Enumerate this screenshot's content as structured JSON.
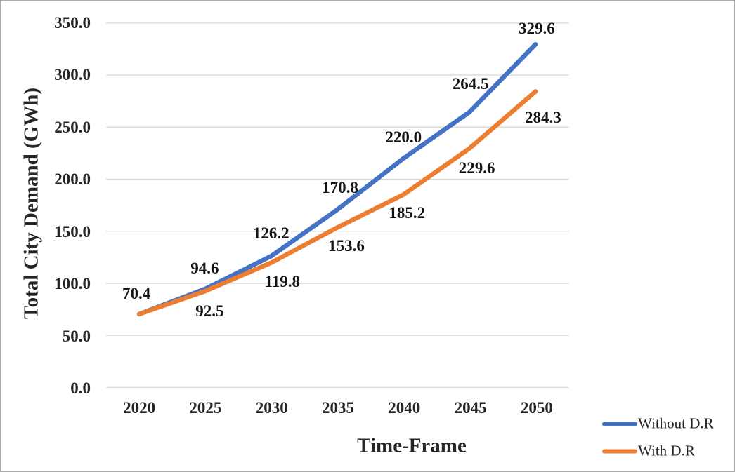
{
  "chart_data": {
    "type": "line",
    "title": "",
    "xlabel": "Time-Frame",
    "ylabel": "Total City Demand (GWh)",
    "categories": [
      "2020",
      "2025",
      "2030",
      "2035",
      "2040",
      "2045",
      "2050"
    ],
    "series": [
      {
        "name": "Without D.R",
        "color": "#4472C4",
        "values": [
          70.4,
          94.6,
          126.2,
          170.8,
          220.0,
          264.5,
          329.6
        ],
        "point_labels": [
          "70.4",
          "94.6",
          "126.2",
          "170.8",
          "220.0",
          "264.5",
          "329.6"
        ]
      },
      {
        "name": "With D.R",
        "color": "#ED7D31",
        "values": [
          70.4,
          92.5,
          119.8,
          153.6,
          185.2,
          229.6,
          284.3
        ],
        "point_labels": [
          null,
          "92.5",
          "119.8",
          "153.6",
          "185.2",
          "229.6",
          "284.3"
        ]
      }
    ],
    "ylim": [
      0,
      350
    ],
    "ytick_labels": [
      "0.0",
      "50.0",
      "100.0",
      "150.0",
      "200.0",
      "250.0",
      "300.0",
      "350.0"
    ],
    "grid": "horizontal",
    "gridline_color": "#D9D9D9",
    "text_color": "#262626",
    "legend_position": "bottom-right"
  }
}
